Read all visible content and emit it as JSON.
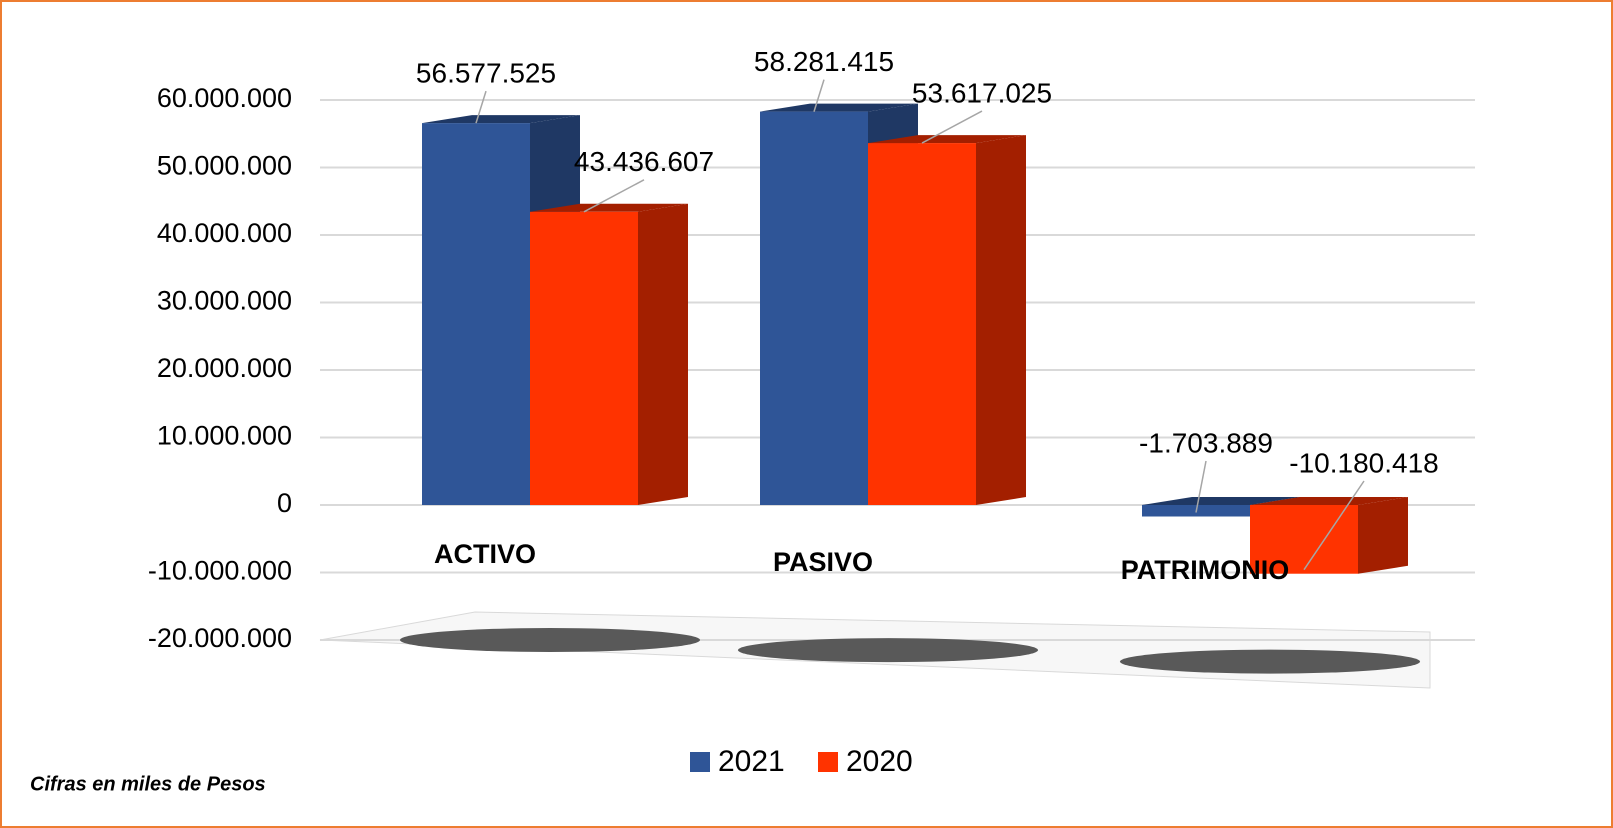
{
  "chart_data": {
    "type": "bar",
    "categories": [
      "ACTIVO",
      "PASIVO",
      "PATRIMONIO"
    ],
    "series": [
      {
        "name": "2021",
        "color": "#2f5597",
        "side_color": "#1f3864",
        "values": [
          56577525,
          58281415,
          -1703889
        ],
        "value_labels": [
          "56.577.525",
          "58.281.415",
          "-1.703.889"
        ]
      },
      {
        "name": "2020",
        "color": "#ff3300",
        "side_color": "#a31f00",
        "values": [
          43436607,
          53617025,
          -10180418
        ],
        "value_labels": [
          "43.436.607",
          "53.617.025",
          "-10.180.418"
        ]
      }
    ],
    "ylim": [
      -20000000,
      60000000
    ],
    "yticks": [
      {
        "value": 60000000,
        "label": "60.000.000"
      },
      {
        "value": 50000000,
        "label": "50.000.000"
      },
      {
        "value": 40000000,
        "label": "40.000.000"
      },
      {
        "value": 30000000,
        "label": "30.000.000"
      },
      {
        "value": 20000000,
        "label": "20.000.000"
      },
      {
        "value": 10000000,
        "label": "10.000.000"
      },
      0,
      {
        "value": -10000000,
        "label": "-10.000.000"
      },
      {
        "value": -20000000,
        "label": "-20.000.000"
      }
    ],
    "grid": true,
    "legend": "bottom",
    "note": "Cifras en miles de Pesos"
  }
}
